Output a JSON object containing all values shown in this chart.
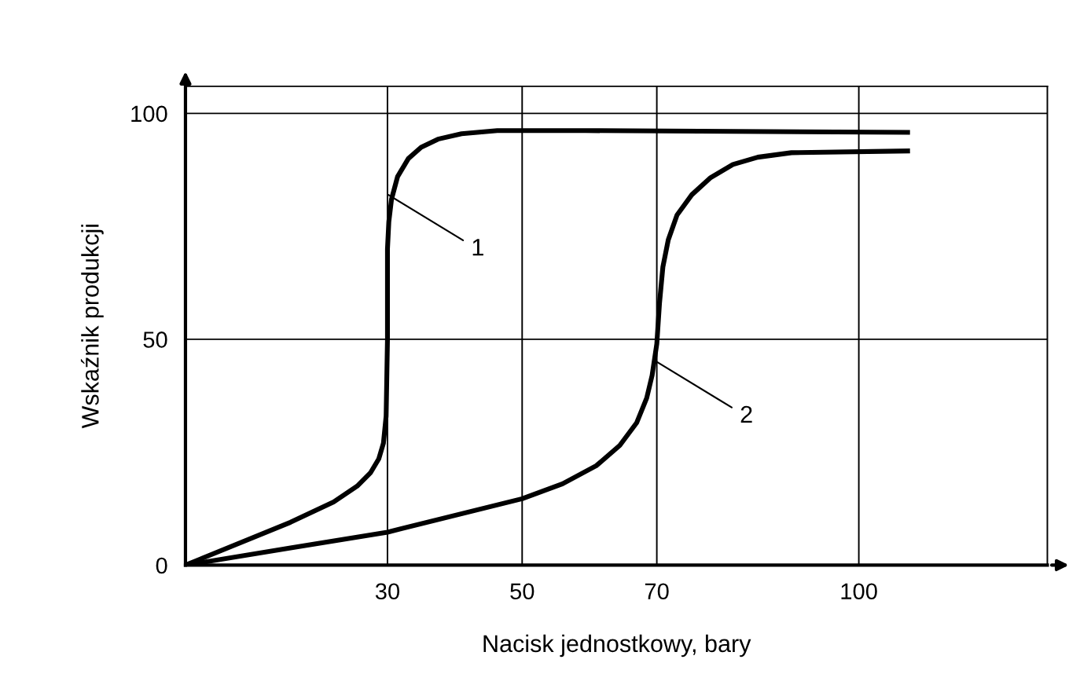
{
  "chart_data": {
    "type": "line",
    "xlabel": "Nacisk jednostkowy, bary",
    "ylabel": "Wskaźnik produkcji",
    "xlim": [
      0,
      128
    ],
    "ylim": [
      0,
      106
    ],
    "xticks": [
      30,
      50,
      70,
      100
    ],
    "yticks": [
      0,
      50,
      100
    ],
    "grid": true,
    "series": [
      {
        "color": "#000000",
        "x": [
          0,
          15.6,
          22,
          25.5,
          27.5,
          28.7,
          29.4,
          29.8,
          30,
          30,
          30.2,
          30.6,
          31.5,
          33.1,
          35,
          37.5,
          41,
          46.3,
          59.4,
          107.6
        ],
        "values": [
          0,
          9.5,
          14,
          17.5,
          20.5,
          23.5,
          27,
          33,
          50,
          70,
          76,
          81,
          86,
          90,
          92.5,
          94.3,
          95.5,
          96.2,
          96.2,
          95.8
        ]
      },
      {
        "color": "#000000",
        "x": [
          0,
          15.6,
          30,
          50,
          56,
          61,
          64.5,
          67,
          68.5,
          69.3,
          70,
          70.4,
          70.9,
          71.7,
          73,
          75.2,
          78,
          81.3,
          85,
          90,
          107.6
        ],
        "values": [
          0,
          3.8,
          7.3,
          14.7,
          18,
          22,
          26.5,
          31.5,
          37,
          42,
          49,
          58,
          66,
          72,
          77.5,
          82,
          85.8,
          88.7,
          90.3,
          91.3,
          91.7
        ]
      }
    ],
    "annotations": [
      {
        "text": "1",
        "x": 30.1,
        "y": 82
      },
      {
        "text": "2",
        "x": 70,
        "y": 45
      }
    ]
  }
}
